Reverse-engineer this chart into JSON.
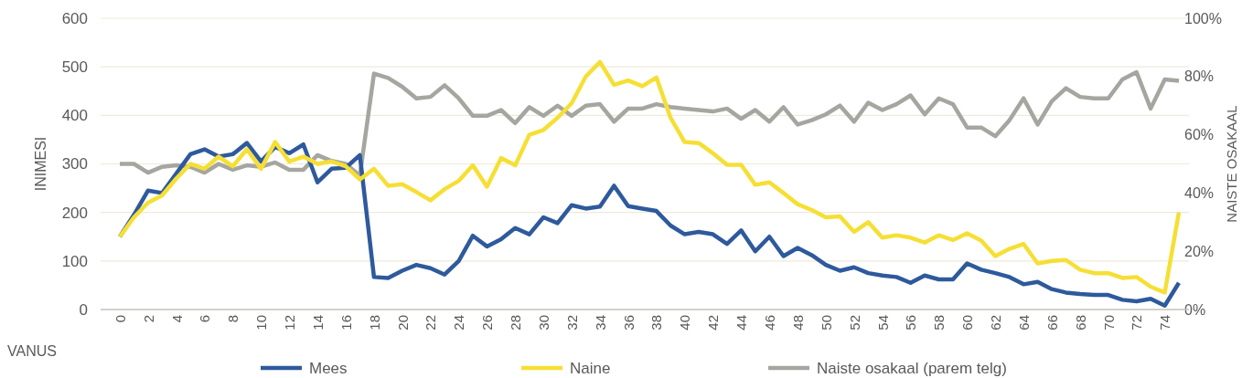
{
  "chart_data": {
    "type": "line",
    "xlabel": "VANUS",
    "ylabel": "INIMESI",
    "y2label": "NAISTE OSAKAAL",
    "categories": [
      "0",
      null,
      "2",
      null,
      "4",
      null,
      "6",
      null,
      "8",
      null,
      "10",
      null,
      "12",
      null,
      "14",
      null,
      "16",
      null,
      "18",
      null,
      "20",
      null,
      "22",
      null,
      "24",
      null,
      "26",
      null,
      "28",
      null,
      "30",
      null,
      "32",
      null,
      "34",
      null,
      "36",
      null,
      "38",
      null,
      "40",
      null,
      "42",
      null,
      "44",
      null,
      "46",
      null,
      "48",
      null,
      "50",
      null,
      "52",
      null,
      "54",
      null,
      "56",
      null,
      "58",
      null,
      "60",
      null,
      "62",
      null,
      "64",
      null,
      "66",
      null,
      "68",
      null,
      "70",
      null,
      "72",
      null,
      "74",
      null
    ],
    "series": [
      {
        "name": "Mees",
        "color": "#2e5a9c",
        "values": [
          150,
          195,
          245,
          240,
          280,
          320,
          330,
          315,
          320,
          343,
          305,
          335,
          322,
          340,
          262,
          290,
          292,
          318,
          67,
          65,
          80,
          92,
          85,
          72,
          100,
          152,
          130,
          145,
          168,
          155,
          190,
          178,
          215,
          208,
          212,
          255,
          213,
          208,
          203,
          173,
          155,
          160,
          155,
          135,
          163,
          120,
          150,
          110,
          127,
          112,
          92,
          80,
          87,
          75,
          70,
          67,
          55,
          70,
          62,
          62,
          95,
          82,
          75,
          67,
          52,
          57,
          42,
          35,
          32,
          30,
          30,
          20,
          17,
          22,
          8,
          55
        ]
      },
      {
        "name": "Naine",
        "color": "#f6df35",
        "values": [
          150,
          190,
          220,
          235,
          270,
          300,
          290,
          315,
          295,
          330,
          290,
          345,
          305,
          315,
          300,
          305,
          295,
          268,
          290,
          255,
          258,
          242,
          225,
          248,
          265,
          297,
          253,
          312,
          297,
          360,
          370,
          395,
          425,
          480,
          510,
          463,
          472,
          460,
          478,
          395,
          345,
          343,
          322,
          298,
          298,
          257,
          262,
          240,
          217,
          205,
          190,
          192,
          160,
          180,
          148,
          153,
          148,
          138,
          153,
          143,
          157,
          142,
          110,
          125,
          135,
          95,
          100,
          102,
          82,
          75,
          75,
          65,
          67,
          47,
          35,
          200
        ]
      },
      {
        "name": "Naiste osakaal (parem telg)",
        "color": "#a6a6a0",
        "axis": "y2",
        "values": [
          50,
          50,
          47,
          49,
          49.5,
          49,
          47,
          50,
          48,
          49.5,
          49,
          50.5,
          48,
          48,
          53,
          51,
          50,
          46,
          81,
          79.5,
          76.5,
          72.5,
          73,
          77,
          72.5,
          66.5,
          66.5,
          68.5,
          64,
          69.5,
          66.5,
          70,
          66.5,
          70,
          70.5,
          64.5,
          69,
          69,
          70.5,
          69.5,
          69,
          68.5,
          68,
          69,
          65.5,
          68.5,
          64.5,
          69.5,
          63.5,
          65,
          67,
          70,
          64.5,
          71,
          68.5,
          70.5,
          73.5,
          67,
          72.5,
          70.5,
          62.5,
          62.5,
          59.5,
          65,
          72.5,
          63.5,
          71.5,
          76,
          73,
          72.5,
          72.5,
          79,
          81.5,
          69,
          79,
          78.5
        ]
      }
    ],
    "ylim": [
      0,
      600
    ],
    "yticks": [
      0,
      100,
      200,
      300,
      400,
      500,
      600
    ],
    "y2lim": [
      0,
      100
    ],
    "y2ticks": [
      {
        "value": 0,
        "label": "0%"
      },
      {
        "value": 20,
        "label": "20%"
      },
      {
        "value": 40,
        "label": "40%"
      },
      {
        "value": 60,
        "label": "60%"
      },
      {
        "value": 80,
        "label": "80%"
      },
      {
        "value": 100,
        "label": "100%"
      }
    ],
    "grid": "y",
    "legend": "bottom",
    "line_style": "solid",
    "marker": "none"
  }
}
